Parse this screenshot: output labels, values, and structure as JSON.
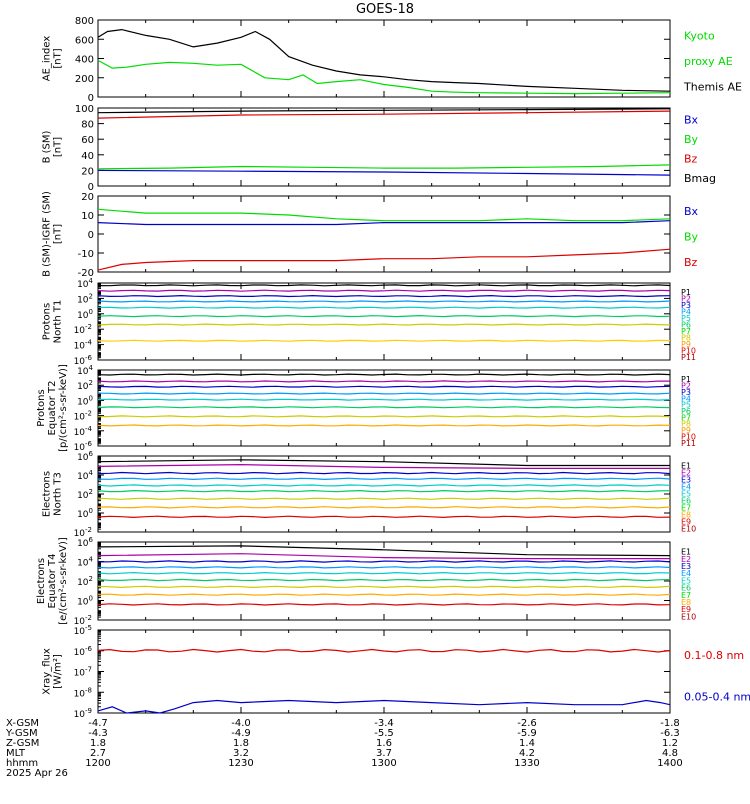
{
  "title": "GOES-18",
  "time_axis": {
    "start": "1200",
    "end": "1400",
    "ticks": [
      "1200",
      "1230",
      "1300",
      "1330",
      "1400"
    ]
  },
  "orbit_table": {
    "row_labels": [
      "X-GSM",
      "Y-GSM",
      "Z-GSM",
      "MLT",
      "hhmm",
      "2025 Apr 26"
    ],
    "columns": [
      {
        "values": [
          "-4.7",
          "-4.3",
          "1.8",
          "2.7",
          "1200"
        ]
      },
      {
        "values": [
          "-4.0",
          "-4.9",
          "1.8",
          "3.2",
          "1230"
        ]
      },
      {
        "values": [
          "-3.4",
          "-5.5",
          "1.6",
          "3.7",
          "1300"
        ]
      },
      {
        "values": [
          "-2.6",
          "-5.9",
          "1.4",
          "4.2",
          "1330"
        ]
      },
      {
        "values": [
          "-1.8",
          "-6.3",
          "1.2",
          "4.8",
          "1400"
        ]
      }
    ]
  },
  "chart_data": [
    {
      "type": "line",
      "ylabel": [
        "AE_index",
        "[nT]"
      ],
      "ylim": [
        0,
        800
      ],
      "scale": "linear",
      "yticks": [
        0,
        200,
        400,
        600,
        800
      ],
      "ytick_labels": [
        "0",
        "200",
        "400",
        "600",
        "800"
      ],
      "legend": [
        {
          "text": "Kyoto",
          "color": "#00dd00"
        },
        {
          "text": "proxy AE",
          "color": "#00dd00"
        },
        {
          "text": "Themis AE",
          "color": "#000000"
        }
      ],
      "series": [
        {
          "name": "Themis AE",
          "color": "#000000",
          "x": [
            1200,
            1202,
            1205,
            1210,
            1215,
            1220,
            1225,
            1230,
            1233,
            1236,
            1240,
            1245,
            1250,
            1255,
            1300,
            1305,
            1310,
            1315,
            1320,
            1330,
            1340,
            1350,
            1400
          ],
          "y": [
            620,
            680,
            700,
            640,
            600,
            520,
            560,
            620,
            680,
            600,
            420,
            330,
            270,
            230,
            210,
            180,
            160,
            150,
            140,
            110,
            90,
            70,
            60
          ]
        },
        {
          "name": "Kyoto proxy AE",
          "color": "#00dd00",
          "x": [
            1200,
            1203,
            1206,
            1210,
            1215,
            1220,
            1225,
            1230,
            1235,
            1240,
            1243,
            1246,
            1250,
            1255,
            1300,
            1305,
            1310,
            1315,
            1320,
            1330,
            1340,
            1350,
            1400
          ],
          "y": [
            380,
            300,
            310,
            340,
            360,
            350,
            330,
            340,
            200,
            180,
            230,
            140,
            160,
            180,
            130,
            100,
            60,
            50,
            45,
            40,
            35,
            40,
            45
          ]
        }
      ]
    },
    {
      "type": "line",
      "ylabel": [
        "B (SM)",
        "[nT]"
      ],
      "ylim": [
        0,
        100
      ],
      "scale": "linear",
      "yticks": [
        0,
        20,
        40,
        60,
        80,
        100
      ],
      "ytick_labels": [
        "0",
        "20",
        "40",
        "60",
        "80",
        "100"
      ],
      "legend": [
        {
          "text": "Bx",
          "color": "#0000cc"
        },
        {
          "text": "By",
          "color": "#00dd00"
        },
        {
          "text": "Bz",
          "color": "#dd0000"
        },
        {
          "text": "Bmag",
          "color": "#000000"
        }
      ],
      "series": [
        {
          "name": "Bmag",
          "color": "#000000",
          "x": [
            1200,
            1230,
            1300,
            1330,
            1400
          ],
          "y": [
            94,
            96,
            97,
            98,
            99
          ]
        },
        {
          "name": "Bz",
          "color": "#dd0000",
          "x": [
            1200,
            1230,
            1300,
            1330,
            1400
          ],
          "y": [
            87,
            91,
            92,
            94,
            96
          ]
        },
        {
          "name": "By",
          "color": "#00dd00",
          "x": [
            1200,
            1215,
            1230,
            1245,
            1300,
            1315,
            1330,
            1345,
            1400
          ],
          "y": [
            22,
            23,
            25,
            24,
            23,
            23,
            24,
            25,
            27
          ]
        },
        {
          "name": "Bx",
          "color": "#0000cc",
          "x": [
            1200,
            1230,
            1300,
            1330,
            1400
          ],
          "y": [
            20,
            19,
            18,
            16,
            14
          ]
        }
      ]
    },
    {
      "type": "line",
      "ylabel": [
        "B (SM)-IGRF (SM)",
        "[nT]"
      ],
      "ylim": [
        -20,
        20
      ],
      "scale": "linear",
      "yticks": [
        -20,
        -10,
        0,
        10,
        20
      ],
      "ytick_labels": [
        "-20",
        "-10",
        "0",
        "10",
        "20"
      ],
      "legend": [
        {
          "text": "Bx",
          "color": "#0000cc"
        },
        {
          "text": "By",
          "color": "#00dd00"
        },
        {
          "text": "Bz",
          "color": "#dd0000"
        }
      ],
      "series": [
        {
          "name": "By",
          "color": "#00dd00",
          "x": [
            1200,
            1210,
            1220,
            1230,
            1240,
            1250,
            1300,
            1310,
            1320,
            1330,
            1340,
            1350,
            1400
          ],
          "y": [
            13,
            11,
            11,
            11,
            10,
            8,
            7,
            7,
            7,
            8,
            7,
            7,
            8
          ]
        },
        {
          "name": "Bx",
          "color": "#0000cc",
          "x": [
            1200,
            1210,
            1220,
            1230,
            1240,
            1250,
            1300,
            1310,
            1320,
            1330,
            1340,
            1350,
            1400
          ],
          "y": [
            6,
            5,
            5,
            5,
            5,
            5,
            6,
            6,
            6,
            6,
            6,
            6,
            7
          ]
        },
        {
          "name": "Bz",
          "color": "#dd0000",
          "x": [
            1200,
            1205,
            1210,
            1220,
            1230,
            1240,
            1250,
            1300,
            1310,
            1320,
            1330,
            1340,
            1350,
            1400
          ],
          "y": [
            -19,
            -16,
            -15,
            -14,
            -14,
            -14,
            -14,
            -13,
            -13,
            -12,
            -12,
            -11,
            -10,
            -8
          ]
        }
      ]
    },
    {
      "type": "line",
      "ylabel": [
        "Protons",
        "North T1"
      ],
      "ylim": [
        -6,
        4
      ],
      "scale": "log",
      "yticks": [
        -6,
        -4,
        -2,
        0,
        2,
        4
      ],
      "ytick_labels": [
        "-6",
        "-4",
        "-2",
        "0",
        "2",
        "4"
      ],
      "legend": [
        {
          "text": "P1",
          "color": "#000000"
        },
        {
          "text": "P2",
          "color": "#aa00aa"
        },
        {
          "text": "P3",
          "color": "#0000cc"
        },
        {
          "text": "P4",
          "color": "#0099ff"
        },
        {
          "text": "P5",
          "color": "#00cccc"
        },
        {
          "text": "P6",
          "color": "#00cc66"
        },
        {
          "text": "P7",
          "color": "#00dd00"
        },
        {
          "text": "P8",
          "color": "#cccc00"
        },
        {
          "text": "P9",
          "color": "#ff9900"
        },
        {
          "text": "P10",
          "color": "#dd0000"
        },
        {
          "text": "P11",
          "color": "#aa0000"
        }
      ],
      "series": [
        {
          "name": "P1",
          "color": "#000000",
          "y": 3.7
        },
        {
          "name": "P2",
          "color": "#aa00aa",
          "y": 3.0
        },
        {
          "name": "P3",
          "color": "#0000cc",
          "y": 2.3
        },
        {
          "name": "P4",
          "color": "#0099ff",
          "y": 1.6
        },
        {
          "name": "P5",
          "color": "#00cccc",
          "y": 0.8
        },
        {
          "name": "P6",
          "color": "#00cc66",
          "y": -0.3
        },
        {
          "name": "P7",
          "color": "#cccc00",
          "y": -1.4
        },
        {
          "name": "P9",
          "color": "#ffcc00",
          "y": -3.5
        }
      ]
    },
    {
      "type": "line",
      "ylabel": [
        "Protons",
        "Equator T2",
        "[p/(cm²-s-sr-keV)]"
      ],
      "ylim": [
        -6,
        4
      ],
      "scale": "log",
      "yticks": [
        -6,
        -4,
        -2,
        0,
        2,
        4
      ],
      "ytick_labels": [
        "-6",
        "-4",
        "-2",
        "0",
        "2",
        "4"
      ],
      "legend": [
        {
          "text": "P1",
          "color": "#000000"
        },
        {
          "text": "P2",
          "color": "#aa00aa"
        },
        {
          "text": "P3",
          "color": "#0000cc"
        },
        {
          "text": "P4",
          "color": "#0099ff"
        },
        {
          "text": "P5",
          "color": "#00cccc"
        },
        {
          "text": "P6",
          "color": "#00cc66"
        },
        {
          "text": "P7",
          "color": "#00dd00"
        },
        {
          "text": "P8",
          "color": "#cccc00"
        },
        {
          "text": "P9",
          "color": "#ff9900"
        },
        {
          "text": "P10",
          "color": "#dd0000"
        },
        {
          "text": "P11",
          "color": "#aa0000"
        }
      ],
      "series": [
        {
          "name": "P1",
          "color": "#000000",
          "y": 3.4
        },
        {
          "name": "P2",
          "color": "#aa00aa",
          "y": 2.5
        },
        {
          "name": "P3",
          "color": "#0000cc",
          "y": 1.8
        },
        {
          "name": "P4",
          "color": "#0099ff",
          "y": 0.9
        },
        {
          "name": "P5",
          "color": "#00cccc",
          "y": 0.1
        },
        {
          "name": "P6",
          "color": "#00cc66",
          "y": -0.9
        },
        {
          "name": "P7",
          "color": "#cccc00",
          "y": -2.1
        },
        {
          "name": "P9",
          "color": "#ffaa00",
          "y": -3.3
        }
      ]
    },
    {
      "type": "line",
      "ylabel": [
        "Electrons",
        "North T3"
      ],
      "ylim": [
        -2,
        6
      ],
      "scale": "log",
      "yticks": [
        -2,
        0,
        2,
        4,
        6
      ],
      "ytick_labels": [
        "-2",
        "0",
        "2",
        "4",
        "6"
      ],
      "legend": [
        {
          "text": "E1",
          "color": "#000000"
        },
        {
          "text": "E2",
          "color": "#aa00aa"
        },
        {
          "text": "E3",
          "color": "#0000cc"
        },
        {
          "text": "E4",
          "color": "#0099ff"
        },
        {
          "text": "E5",
          "color": "#00cccc"
        },
        {
          "text": "E6",
          "color": "#00cc66"
        },
        {
          "text": "E7",
          "color": "#00dd00"
        },
        {
          "text": "E8",
          "color": "#ffaa00"
        },
        {
          "text": "E9",
          "color": "#dd0000"
        },
        {
          "text": "E10",
          "color": "#aa0000"
        }
      ],
      "series": [
        {
          "name": "E1",
          "color": "#000000",
          "x": [
            1200,
            1230,
            1300,
            1330,
            1400
          ],
          "y": [
            5.4,
            5.6,
            5.4,
            5.0,
            5.0
          ]
        },
        {
          "name": "E2",
          "color": "#aa00aa",
          "x": [
            1200,
            1230,
            1300,
            1330,
            1400
          ],
          "y": [
            4.9,
            5.1,
            4.8,
            4.7,
            4.7
          ]
        },
        {
          "name": "E3",
          "color": "#0000cc",
          "y": 4.2
        },
        {
          "name": "E4",
          "color": "#0099ff",
          "y": 3.6
        },
        {
          "name": "E5",
          "color": "#00cccc",
          "y": 2.9
        },
        {
          "name": "E6",
          "color": "#00cc66",
          "y": 2.3
        },
        {
          "name": "E7",
          "color": "#cccc00",
          "y": 1.5
        },
        {
          "name": "E8",
          "color": "#ffaa00",
          "y": 0.6
        },
        {
          "name": "E9",
          "color": "#dd0000",
          "y": -0.4
        }
      ]
    },
    {
      "type": "line",
      "ylabel": [
        "Electrons",
        "Equator T4",
        "[e/(cm²-s-sr-keV)]"
      ],
      "ylim": [
        -2,
        6
      ],
      "scale": "log",
      "yticks": [
        -2,
        0,
        2,
        4,
        6
      ],
      "ytick_labels": [
        "-2",
        "0",
        "2",
        "4",
        "6"
      ],
      "legend": [
        {
          "text": "E1",
          "color": "#000000"
        },
        {
          "text": "E2",
          "color": "#aa00aa"
        },
        {
          "text": "E3",
          "color": "#0000cc"
        },
        {
          "text": "E4",
          "color": "#0099ff"
        },
        {
          "text": "E5",
          "color": "#00cccc"
        },
        {
          "text": "E6",
          "color": "#00cc66"
        },
        {
          "text": "E7",
          "color": "#00dd00"
        },
        {
          "text": "E8",
          "color": "#ffaa00"
        },
        {
          "text": "E9",
          "color": "#dd0000"
        },
        {
          "text": "E10",
          "color": "#aa0000"
        }
      ],
      "series": [
        {
          "name": "E1",
          "color": "#000000",
          "x": [
            1200,
            1230,
            1300,
            1330,
            1400
          ],
          "y": [
            5.5,
            5.6,
            5.2,
            4.7,
            4.6
          ]
        },
        {
          "name": "E2",
          "color": "#aa00aa",
          "x": [
            1200,
            1230,
            1300,
            1330,
            1400
          ],
          "y": [
            4.6,
            4.8,
            4.4,
            4.3,
            4.3
          ]
        },
        {
          "name": "E3",
          "color": "#0000cc",
          "y": 4.0
        },
        {
          "name": "E4",
          "color": "#0099ff",
          "y": 3.4
        },
        {
          "name": "E5",
          "color": "#00cccc",
          "y": 2.8
        },
        {
          "name": "E6",
          "color": "#00cc66",
          "y": 2.1
        },
        {
          "name": "E7",
          "color": "#cccc00",
          "y": 1.4
        },
        {
          "name": "E8",
          "color": "#ffaa00",
          "y": 0.6
        },
        {
          "name": "E9",
          "color": "#dd0000",
          "y": -0.4
        }
      ]
    },
    {
      "type": "line",
      "ylabel": [
        "Xray_flux",
        "[W/m²]"
      ],
      "ylim": [
        -9,
        -5
      ],
      "scale": "log",
      "yticks": [
        -9,
        -8,
        -7,
        -6,
        -5
      ],
      "ytick_labels": [
        "-9",
        "-8",
        "-7",
        "-6",
        "-5"
      ],
      "legend": [
        {
          "text": "0.1-0.8 nm",
          "color": "#dd0000"
        },
        {
          "text": "0.05-0.4 nm",
          "color": "#0000cc"
        }
      ],
      "series": [
        {
          "name": "0.1-0.8 nm",
          "color": "#dd0000",
          "y": -6.0
        },
        {
          "name": "0.05-0.4 nm",
          "color": "#0000cc",
          "x": [
            1200,
            1203,
            1206,
            1210,
            1213,
            1216,
            1220,
            1225,
            1230,
            1240,
            1250,
            1300,
            1310,
            1320,
            1330,
            1340,
            1350,
            1355,
            1358,
            1400
          ],
          "y": [
            -8.9,
            -8.7,
            -9.0,
            -8.9,
            -9.0,
            -8.8,
            -8.5,
            -8.4,
            -8.5,
            -8.4,
            -8.5,
            -8.4,
            -8.5,
            -8.6,
            -8.5,
            -8.6,
            -8.6,
            -8.4,
            -8.5,
            -8.6
          ]
        }
      ]
    }
  ]
}
